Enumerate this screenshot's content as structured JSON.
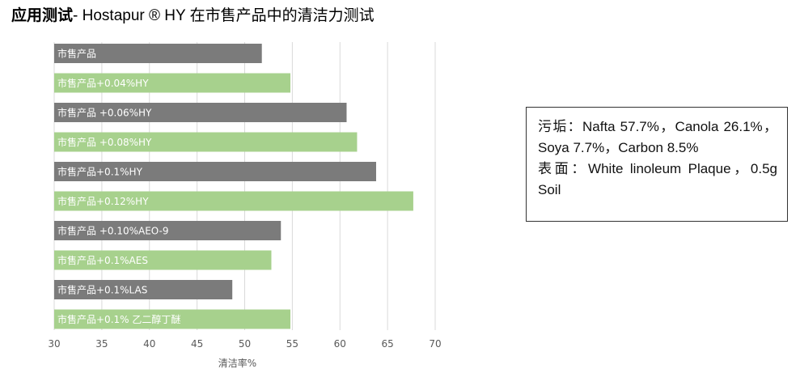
{
  "title": {
    "bold_part": "应用测试",
    "rest": "- Hostapur ® HY 在市售产品中的清洁力测试"
  },
  "note": {
    "line1": "污垢：Nafta 57.7%，Canola 26.1%，Soya 7.7%，Carbon 8.5%",
    "line2": "表面：White linoleum Plaque，0.5g Soil"
  },
  "colors": {
    "gray": "#7b7b7b",
    "green": "#a7d18d",
    "grid": "#d9d9d9",
    "axis_text": "#595959"
  },
  "chart_data": {
    "type": "bar",
    "orientation": "horizontal",
    "categories": [
      "市售产品",
      "市售产品+0.04%HY",
      "市售产品 +0.06%HY",
      "市售产品 +0.08%HY",
      "市售产品+0.1%HY",
      "市售产品+0.12%HY",
      "市售产品 +0.10%AEO-9",
      "市售产品+0.1%AES",
      "市售产品+0.1%LAS",
      "市售产品+0.1% 乙二醇丁醚"
    ],
    "values": [
      51.8,
      54.8,
      60.7,
      61.8,
      63.8,
      67.7,
      53.8,
      52.8,
      48.7,
      54.8
    ],
    "bar_colors": [
      "gray",
      "green",
      "gray",
      "green",
      "gray",
      "green",
      "gray",
      "green",
      "gray",
      "green"
    ],
    "xlim": [
      30,
      70
    ],
    "xticks": [
      30,
      35,
      40,
      45,
      50,
      55,
      60,
      65,
      70
    ],
    "xlabel": "清洁率%",
    "ylabel": "",
    "grid": true,
    "labels_inside_bars": true
  }
}
